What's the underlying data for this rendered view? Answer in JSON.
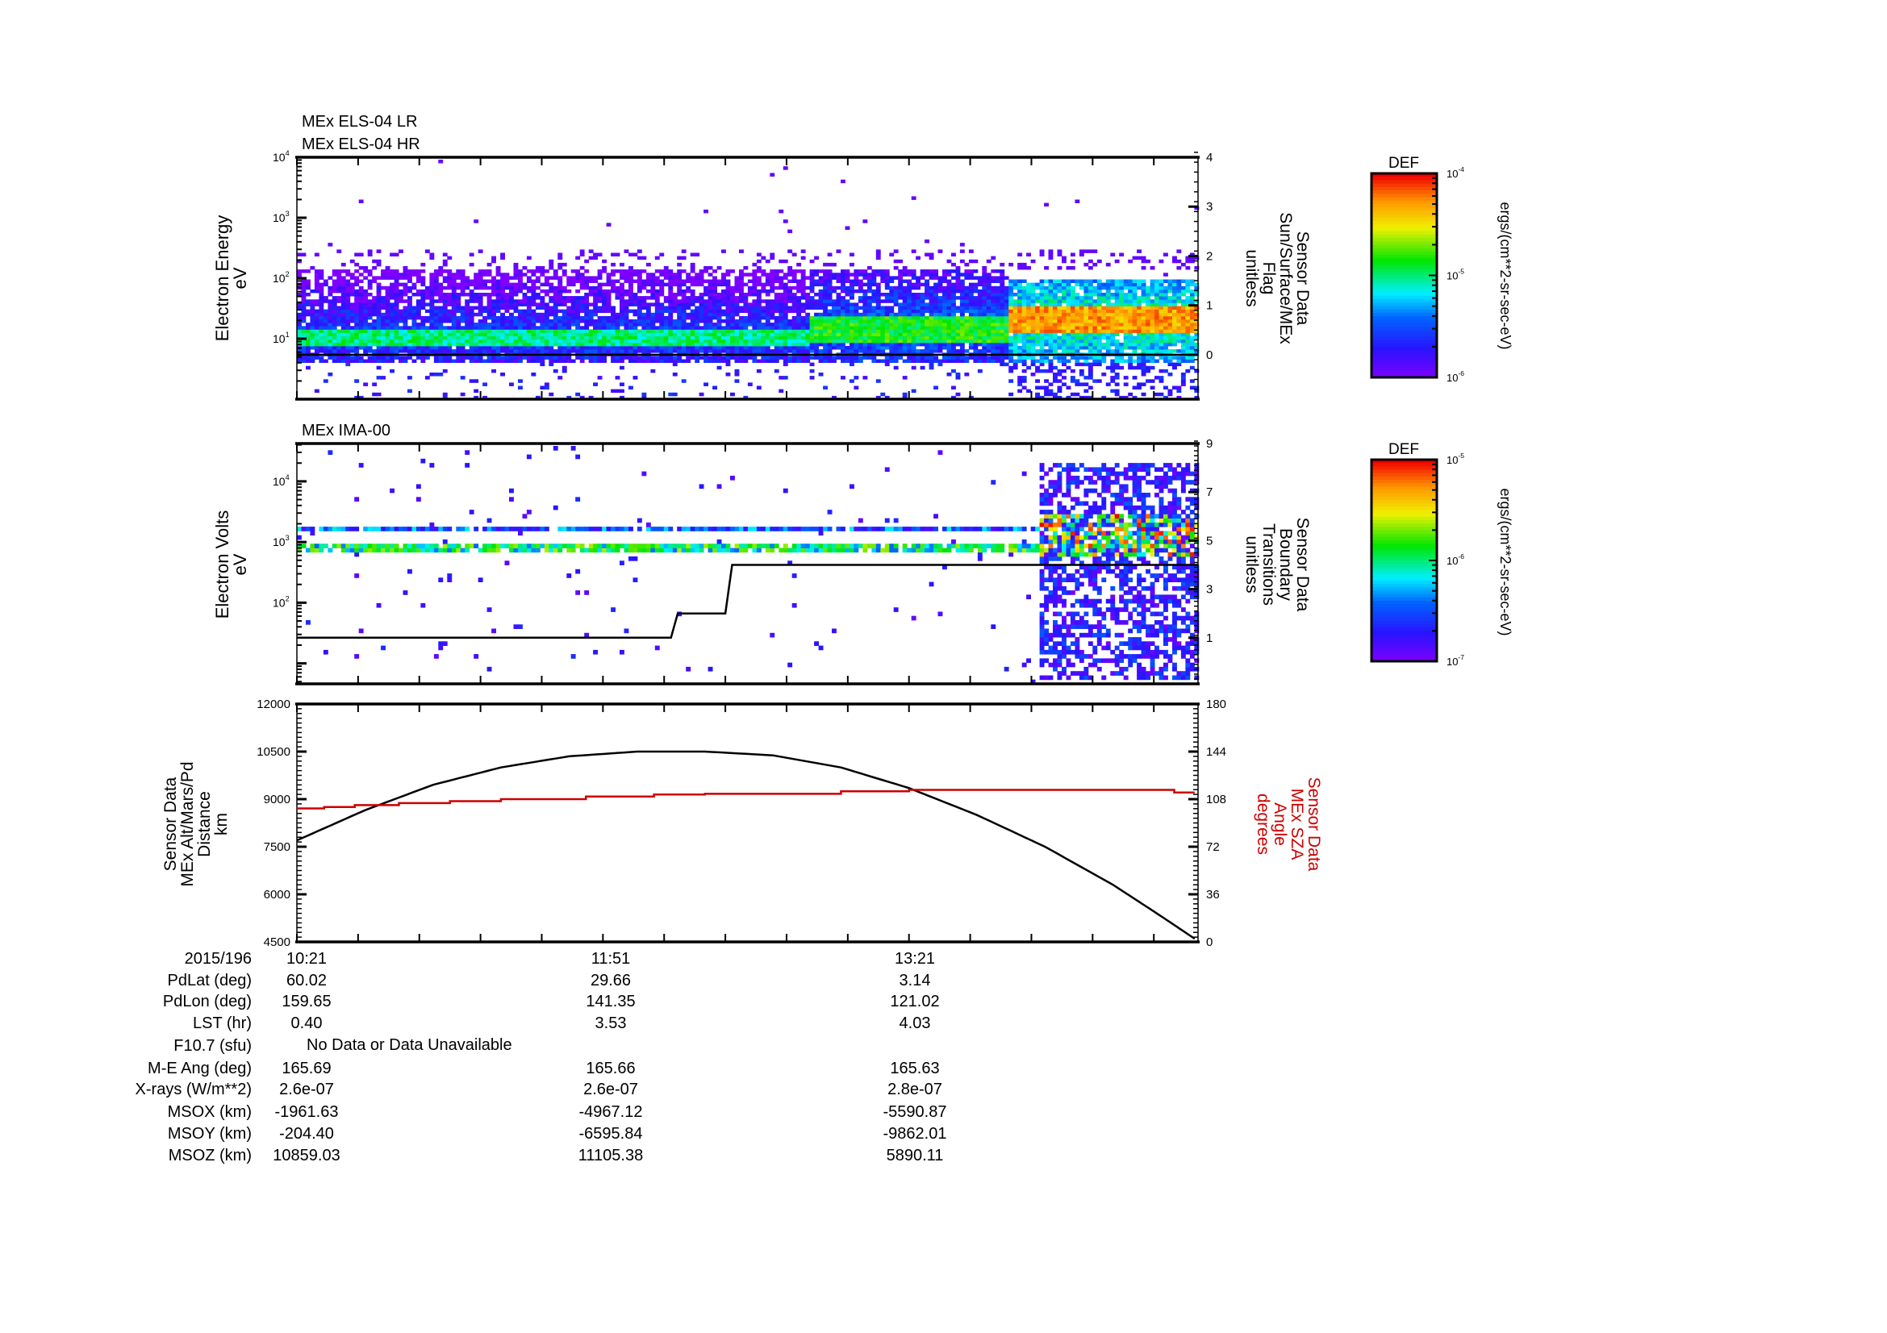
{
  "chart_data": [
    {
      "type": "heatmap",
      "titles": [
        "MEx ELS-04 LR",
        "MEx ELS-04 HR"
      ],
      "ylabel": [
        "Electron Energy",
        "eV"
      ],
      "yscale": "log",
      "ylim": [
        1,
        10000
      ],
      "yticks": [
        {
          "exp": "1",
          "value": 10
        },
        {
          "exp": "2",
          "value": 100
        },
        {
          "exp": "3",
          "value": 1000
        },
        {
          "exp": "4",
          "value": 10000
        }
      ],
      "y2label": [
        "Sensor Data",
        "Sun/Surface/MEx",
        "Flag",
        "unitless"
      ],
      "y2lim": [
        -0.9,
        4
      ],
      "y2ticks": [
        "0",
        "1",
        "2",
        "3",
        "4"
      ],
      "x_minutes_range": [
        0,
        265
      ],
      "colorbar": {
        "title": "DEF",
        "units": "ergs/(cm**2-sr-sec-eV)",
        "log_range": [
          -6,
          -4
        ],
        "ticks": [
          {
            "base": "10",
            "exp": "-4"
          },
          {
            "base": "10",
            "exp": "-5"
          },
          {
            "base": "10",
            "exp": "-6"
          }
        ]
      },
      "flag_line": [
        [
          0,
          0
        ],
        [
          265,
          0
        ]
      ],
      "regions": [
        {
          "t": [
            0,
            150
          ],
          "core_logE": [
            0.85,
            1.15
          ],
          "core_level": -5.0,
          "halo_logE": [
            0.6,
            2.1
          ],
          "halo_level": -5.6
        },
        {
          "t": [
            150,
            209
          ],
          "core_logE": [
            0.9,
            1.35
          ],
          "core_level": -4.85,
          "halo_logE": [
            0.6,
            2.1
          ],
          "halo_level": -5.5
        },
        {
          "t": [
            209,
            265
          ],
          "core_logE": [
            1.05,
            1.5
          ],
          "core_level": -4.3,
          "halo_logE": [
            0.6,
            1.95
          ],
          "halo_level": -5.1
        }
      ]
    },
    {
      "type": "heatmap",
      "titles": [
        "MEx IMA-00"
      ],
      "ylabel": [
        "Electron Volts",
        "eV"
      ],
      "yscale": "log",
      "ylim": [
        4.6,
        42000
      ],
      "yticks": [
        {
          "exp": "2",
          "value": 100
        },
        {
          "exp": "3",
          "value": 1000
        },
        {
          "exp": "4",
          "value": 10000
        }
      ],
      "y2label": [
        "Sensor Data",
        "Boundary",
        "Transitions",
        "unitless"
      ],
      "y2lim": [
        -0.9,
        9
      ],
      "y2ticks": [
        "1",
        "3",
        "5",
        "7",
        "9"
      ],
      "x_minutes_range": [
        0,
        265
      ],
      "colorbar": {
        "title": "DEF",
        "units": "ergs/(cm**2-sr-sec-eV)",
        "log_range": [
          -7,
          -5
        ],
        "ticks": [
          {
            "base": "10",
            "exp": "-5"
          },
          {
            "base": "10",
            "exp": "-6"
          },
          {
            "base": "10",
            "exp": "-7"
          }
        ]
      },
      "boundary_line": [
        [
          0,
          1
        ],
        [
          110,
          1
        ],
        [
          112,
          2
        ],
        [
          126,
          2
        ],
        [
          128,
          4
        ],
        [
          265,
          4
        ]
      ],
      "bands": [
        {
          "logE": [
            2.82,
            2.97
          ],
          "level": -6.0,
          "t": [
            0,
            218
          ]
        },
        {
          "logE": [
            3.12,
            3.24
          ],
          "level": -6.5,
          "t": [
            0,
            218
          ]
        },
        {
          "logE": [
            2.7,
            3.4
          ],
          "level": -5.8,
          "t": [
            218,
            265
          ]
        }
      ],
      "dense_region": {
        "t": [
          218,
          265
        ],
        "logE": [
          0.7,
          4.25
        ],
        "level": -6.7
      }
    },
    {
      "type": "line",
      "ylabel": [
        "Sensor Data",
        "MEx Alt/Mars/Pd",
        "Distance",
        "km"
      ],
      "ylim": [
        4500,
        12000
      ],
      "yticks": [
        "4500",
        "6000",
        "7500",
        "9000",
        "10500",
        "12000"
      ],
      "y2label": [
        "Sensor Data",
        "MEx SZA",
        "Angle",
        "degrees"
      ],
      "y2lim": [
        0,
        180
      ],
      "y2ticks": [
        "0",
        "36",
        "72",
        "108",
        "144",
        "180"
      ],
      "x_minutes_range": [
        0,
        265
      ],
      "series": [
        {
          "name": "MEx Alt/Mars/Pd Distance (km)",
          "color": "#000000",
          "axis": "left",
          "points": [
            [
              0,
              7700
            ],
            [
              20,
              8650
            ],
            [
              40,
              9450
            ],
            [
              60,
              10000
            ],
            [
              80,
              10350
            ],
            [
              100,
              10500
            ],
            [
              120,
              10500
            ],
            [
              140,
              10380
            ],
            [
              160,
              10000
            ],
            [
              180,
              9350
            ],
            [
              200,
              8500
            ],
            [
              220,
              7500
            ],
            [
              240,
              6300
            ],
            [
              255,
              5250
            ],
            [
              264,
              4600
            ]
          ]
        },
        {
          "name": "MEx SZA Angle (degrees)",
          "color": "#cc0000",
          "axis": "right",
          "step": true,
          "points": [
            [
              0,
              101
            ],
            [
              8,
              102
            ],
            [
              17,
              103.5
            ],
            [
              30,
              105
            ],
            [
              45,
              106.5
            ],
            [
              60,
              108
            ],
            [
              85,
              110
            ],
            [
              105,
              111.5
            ],
            [
              120,
              112
            ],
            [
              160,
              114
            ],
            [
              180,
              115
            ],
            [
              255,
              115
            ],
            [
              258,
              113
            ],
            [
              264,
              113
            ]
          ]
        }
      ]
    }
  ],
  "table": {
    "rows": [
      {
        "label": "2015/196",
        "values": [
          "10:21",
          "11:51",
          "13:21"
        ]
      },
      {
        "label": "PdLat (deg)",
        "values": [
          "60.02",
          "29.66",
          "3.14"
        ]
      },
      {
        "label": "PdLon (deg)",
        "values": [
          "159.65",
          "141.35",
          "121.02"
        ]
      },
      {
        "label": "LST (hr)",
        "values": [
          "0.40",
          "3.53",
          "4.03"
        ]
      },
      {
        "label": "F10.7 (sfu)",
        "note": "No Data or Data Unavailable"
      },
      {
        "label": "M-E Ang (deg)",
        "values": [
          "165.69",
          "165.66",
          "165.63"
        ]
      },
      {
        "label": "X-rays (W/m**2)",
        "values": [
          "2.6e-07",
          "2.6e-07",
          "2.8e-07"
        ]
      },
      {
        "label": "MSOX (km)",
        "values": [
          "-1961.63",
          "-4967.12",
          "-5590.87"
        ]
      },
      {
        "label": "MSOY (km)",
        "values": [
          "-204.40",
          "-6595.84",
          "-9862.01"
        ]
      },
      {
        "label": "MSOZ (km)",
        "values": [
          "10859.03",
          "11105.38",
          "5890.11"
        ]
      }
    ]
  }
}
